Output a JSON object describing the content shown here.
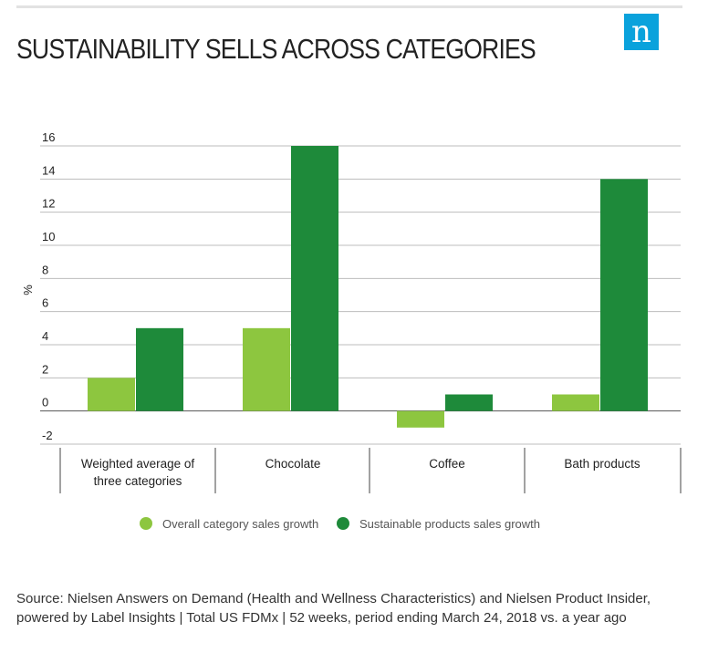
{
  "title": "SUSTAINABILITY SELLS ACROSS CATEGORIES",
  "logo": {
    "glyph": "n",
    "color": "#0aa2dc",
    "icon": "nielsen-logo"
  },
  "source": "Source: Nielsen Answers on Demand (Health and Wellness Characteristics) and Nielsen Product Insider, powered by Label Insights | Total US FDMx | 52 weeks, period ending March 24, 2018 vs. a year ago",
  "chart_data": {
    "type": "bar",
    "title": "SUSTAINABILITY SELLS ACROSS CATEGORIES",
    "xlabel": "",
    "ylabel": "%",
    "ylim": [
      -2,
      16
    ],
    "yticks": [
      "16",
      "14",
      "12",
      "10",
      "8",
      "6",
      "4",
      "2",
      "0",
      "-2"
    ],
    "grid": true,
    "legend_position": "bottom",
    "categories": [
      "Weighted average of three categories",
      "Chocolate",
      "Coffee",
      "Bath products"
    ],
    "category_lines": [
      [
        "Weighted average of",
        "three categories"
      ],
      [
        "Chocolate"
      ],
      [
        "Coffee"
      ],
      [
        "Bath products"
      ]
    ],
    "series": [
      {
        "name": "Overall category sales growth",
        "color": "#8dc63f",
        "values": [
          2,
          5,
          -1,
          1
        ]
      },
      {
        "name": "Sustainable products sales growth",
        "color": "#1e8a3a",
        "values": [
          5,
          16,
          1,
          14
        ]
      }
    ]
  }
}
